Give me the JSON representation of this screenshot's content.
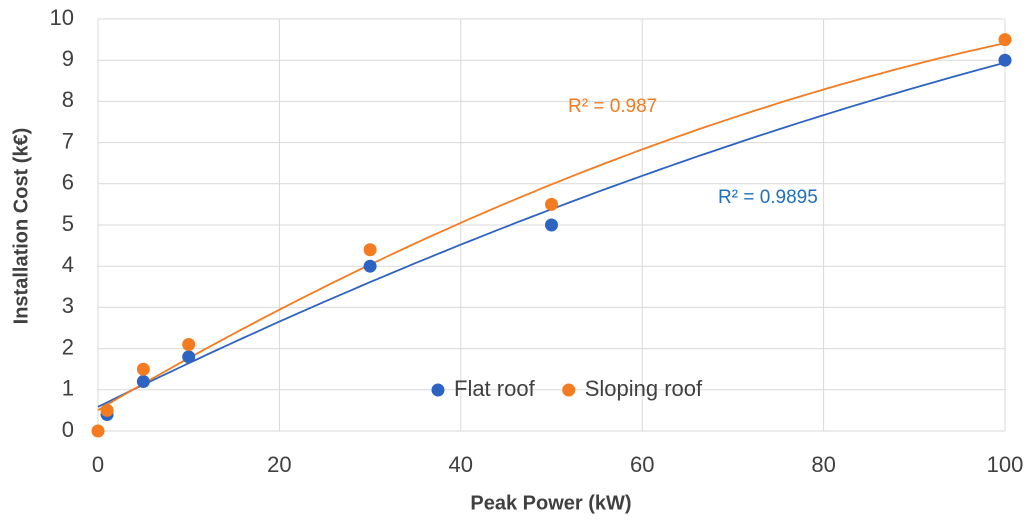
{
  "chart_data": {
    "type": "scatter",
    "x_label": "Peak Power (kW)",
    "y_label": "Installation Cost (k€)",
    "series": [
      {
        "name": "Flat roof",
        "color": "#2e64c1",
        "x": [
          1,
          5,
          10,
          30,
          50,
          100
        ],
        "values": [
          0.4,
          1.2,
          1.8,
          4,
          5,
          9
        ]
      },
      {
        "name": "Sloping roof",
        "color": "#f47b20",
        "x": [
          0,
          1,
          5,
          10,
          30,
          50,
          100
        ],
        "values": [
          0,
          0.5,
          1.5,
          2.1,
          4.4,
          5.5,
          9.5
        ]
      }
    ],
    "annotations": [
      {
        "text": "R² = 0.9895",
        "color": "#1f6fbf"
      },
      {
        "text": "R² = 0.987",
        "color": "#f47b20"
      }
    ],
    "trendline": "polynomial",
    "xlim": [
      0,
      100
    ],
    "xticks": [
      0,
      20,
      40,
      60,
      80,
      100
    ],
    "ylim": [
      0,
      10
    ],
    "yticks": [
      0,
      1,
      2,
      3,
      4,
      5,
      6,
      7,
      8,
      9,
      10
    ],
    "grid": true,
    "legend": "bottom-center"
  }
}
